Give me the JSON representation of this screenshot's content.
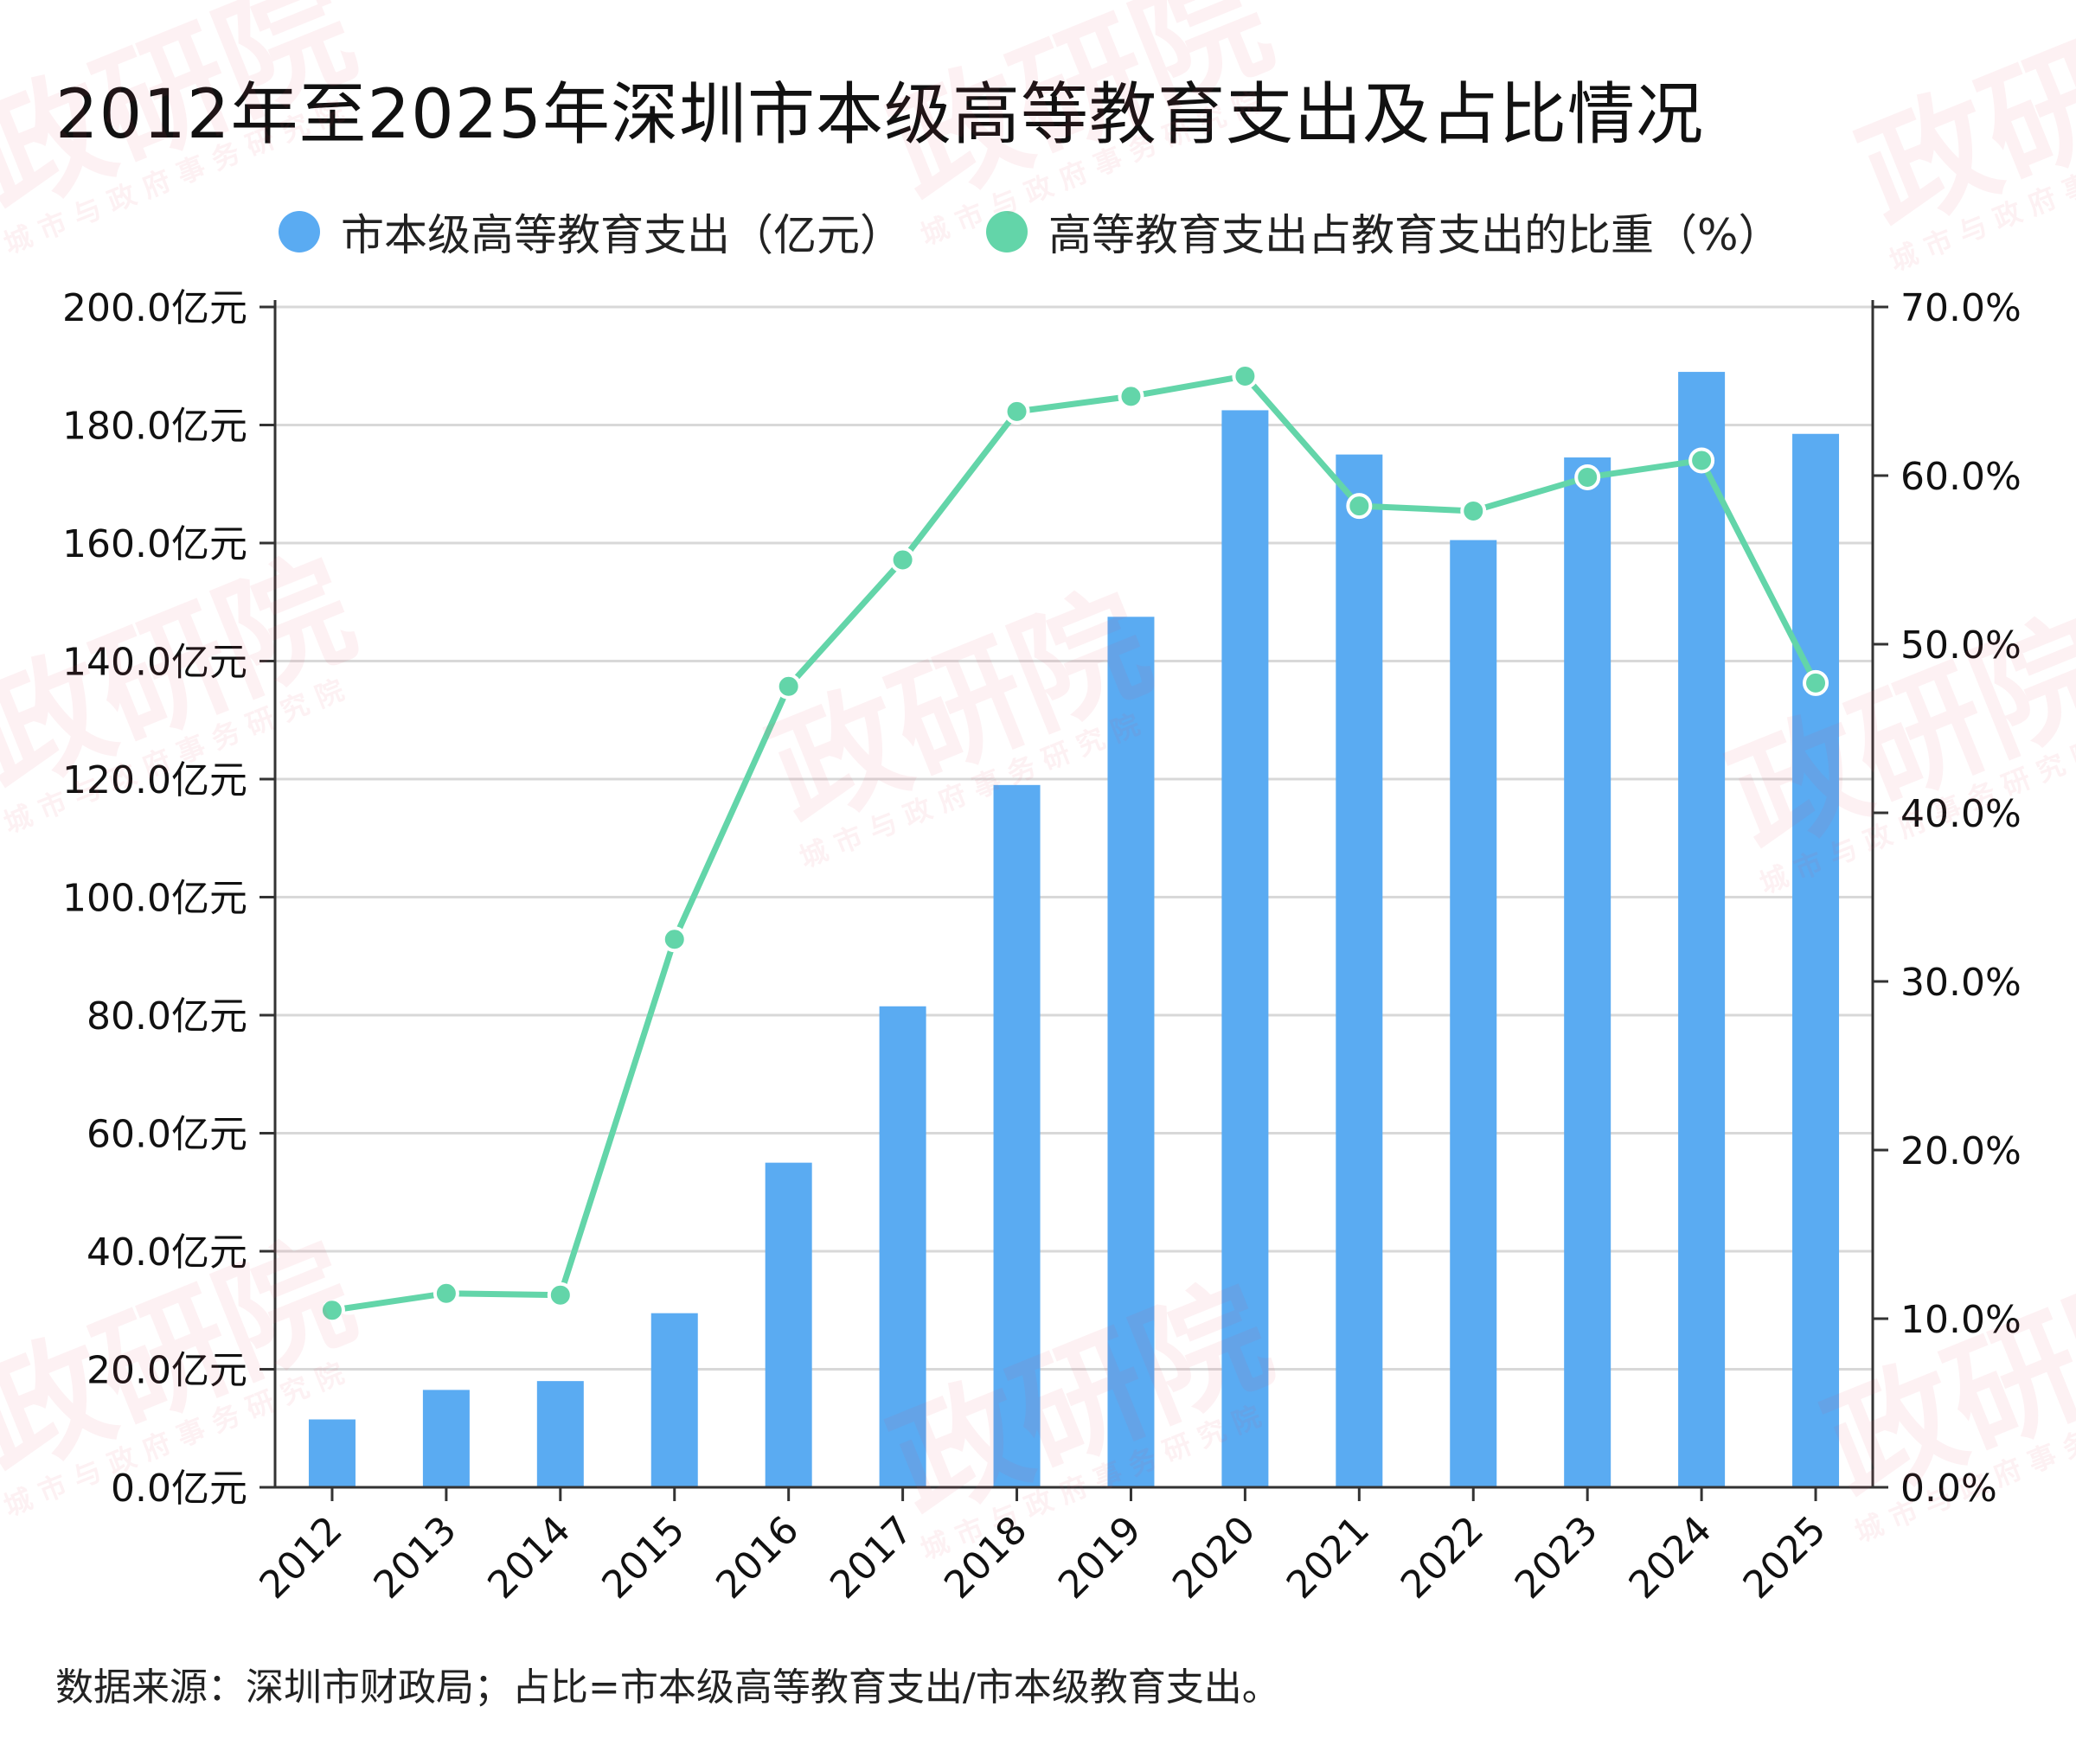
{
  "title": "2012年至2025年深圳市本级高等教育支出及占比情况",
  "footer": "数据来源：深圳市财政局；占比=市本级高等教育支出/市本级教育支出。",
  "watermark": {
    "main": "政研院",
    "sub": "城 市 与 政 府 事 务 研 究 院"
  },
  "colors": {
    "bar": "#5aabf2",
    "line": "#63d5a9",
    "grid": "#d8d8d8",
    "axis": "#333333"
  },
  "chart_data": {
    "type": "bar",
    "categories": [
      "2012",
      "2013",
      "2014",
      "2015",
      "2016",
      "2017",
      "2018",
      "2019",
      "2020",
      "2021",
      "2022",
      "2023",
      "2024",
      "2025"
    ],
    "series": [
      {
        "name": "市本级高等教育支出（亿元）",
        "type": "bar",
        "axis": "left",
        "values": [
          11.5,
          16.5,
          18,
          29.5,
          55,
          81.5,
          119,
          147.5,
          182.5,
          175,
          160.5,
          174.5,
          189,
          178.5
        ]
      },
      {
        "name": "高等教育支出占教育支出的比重（%）",
        "type": "line",
        "axis": "right",
        "values": [
          10.5,
          11.5,
          11.4,
          32.5,
          47.5,
          55,
          63.8,
          64.7,
          65.9,
          58.2,
          57.9,
          59.9,
          60.9,
          47.7
        ]
      }
    ],
    "y_left": {
      "range": [
        0,
        200
      ],
      "ticks": [
        "0.0亿元",
        "20.0亿元",
        "40.0亿元",
        "60.0亿元",
        "80.0亿元",
        "100.0亿元",
        "120.0亿元",
        "140.0亿元",
        "160.0亿元",
        "180.0亿元",
        "200.0亿元"
      ]
    },
    "y_right": {
      "range": [
        0,
        70
      ],
      "ticks": [
        "0.0%",
        "10.0%",
        "20.0%",
        "30.0%",
        "40.0%",
        "50.0%",
        "60.0%",
        "70.0%"
      ]
    },
    "grid": true,
    "legend": "top-center"
  }
}
